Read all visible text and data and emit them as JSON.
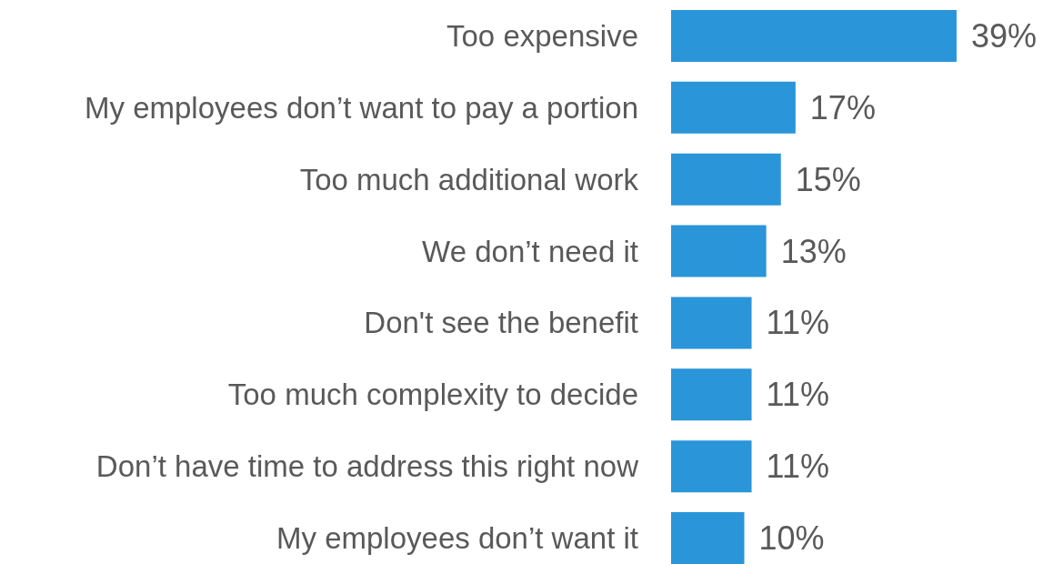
{
  "chart_data": {
    "type": "bar",
    "orientation": "horizontal",
    "categories": [
      "Too expensive",
      "My employees don’t want to pay a portion",
      "Too much additional work",
      "We don’t need it",
      "Don't see the benefit",
      "Too much complexity to decide",
      "Don’t have time to address this right now",
      "My employees don’t want it"
    ],
    "values": [
      39,
      17,
      15,
      13,
      11,
      11,
      11,
      10
    ],
    "value_labels": [
      "39%",
      "17%",
      "15%",
      "13%",
      "11%",
      "11%",
      "11%",
      "10%"
    ],
    "color": "#2a95d8",
    "tick_labels": "y"
  }
}
